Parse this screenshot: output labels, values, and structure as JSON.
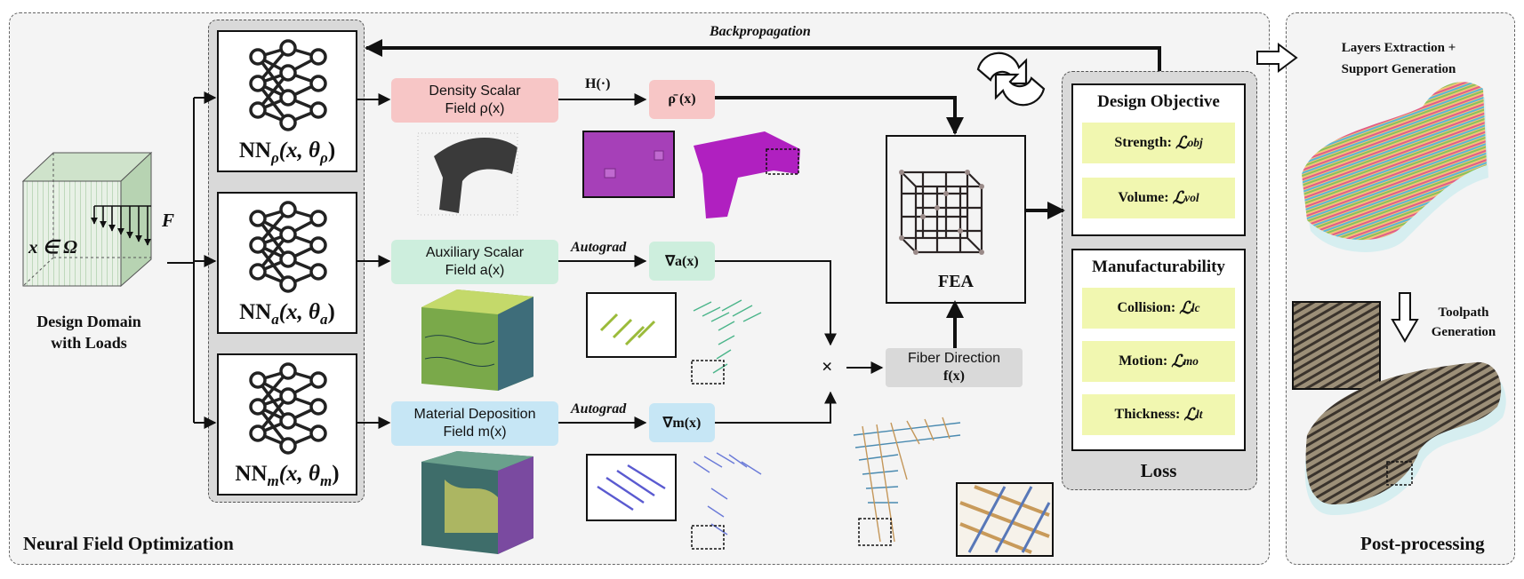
{
  "panels": {
    "neural_title": "Neural Field Optimization",
    "post_title": "Post-processing"
  },
  "domain": {
    "math": "x ∈ Ω",
    "force": "F",
    "caption_line1": "Design Domain",
    "caption_line2": "with Loads"
  },
  "networks": [
    {
      "base": "NN",
      "sub": "ρ",
      "args": "(x, θ",
      "argsub": "ρ",
      "close": ")"
    },
    {
      "base": "NN",
      "sub": "a",
      "args": "(x, θ",
      "argsub": "a",
      "close": ")"
    },
    {
      "base": "NN",
      "sub": "m",
      "args": "(x, θ",
      "argsub": "m",
      "close": ")"
    }
  ],
  "fields": {
    "density_line1": "Density Scalar",
    "density_line2": "Field ρ(x)",
    "aux_line1": "Auxiliary Scalar",
    "aux_line2": "Field a(x)",
    "mat_line1": "Material Deposition",
    "mat_line2": "Field m(x)"
  },
  "ops": {
    "heaviside": "H(·)",
    "rho_bar": "ρ̄ (x)",
    "grad_a": "∇a(x)",
    "grad_m": "∇m(x)",
    "autograd1": "Autograd",
    "autograd2": "Autograd",
    "times": "×",
    "fiber_line1": "Fiber Direction",
    "fiber_line2": "f(x)",
    "fea": "FEA",
    "backprop": "Backpropagation"
  },
  "loss": {
    "design_objective": "Design Objective",
    "strength_label": "Strength:",
    "strength_sym": "ℒ",
    "strength_sub": "obj",
    "volume_label": "Volume:",
    "volume_sym": "ℒ",
    "volume_sub": "vol",
    "manufacturability": "Manufacturability",
    "collision_label": "Collision:",
    "collision_sym": "ℒ",
    "collision_sub": "lc",
    "motion_label": "Motion:",
    "motion_sym": "ℒ",
    "motion_sub": "mo",
    "thickness_label": "Thickness:",
    "thickness_sym": "ℒ",
    "thickness_sub": "lt",
    "title": "Loss"
  },
  "post": {
    "layers_line1": "Layers Extraction +",
    "layers_line2": "Support Generation",
    "toolpath_line1": "Toolpath",
    "toolpath_line2": "Generation"
  },
  "colors": {
    "density": "#f7c6c6",
    "aux": "#cdeedd",
    "mat": "#c6e6f5",
    "fiber": "#d9d9d9",
    "loss_item": "#f1f7b0"
  }
}
